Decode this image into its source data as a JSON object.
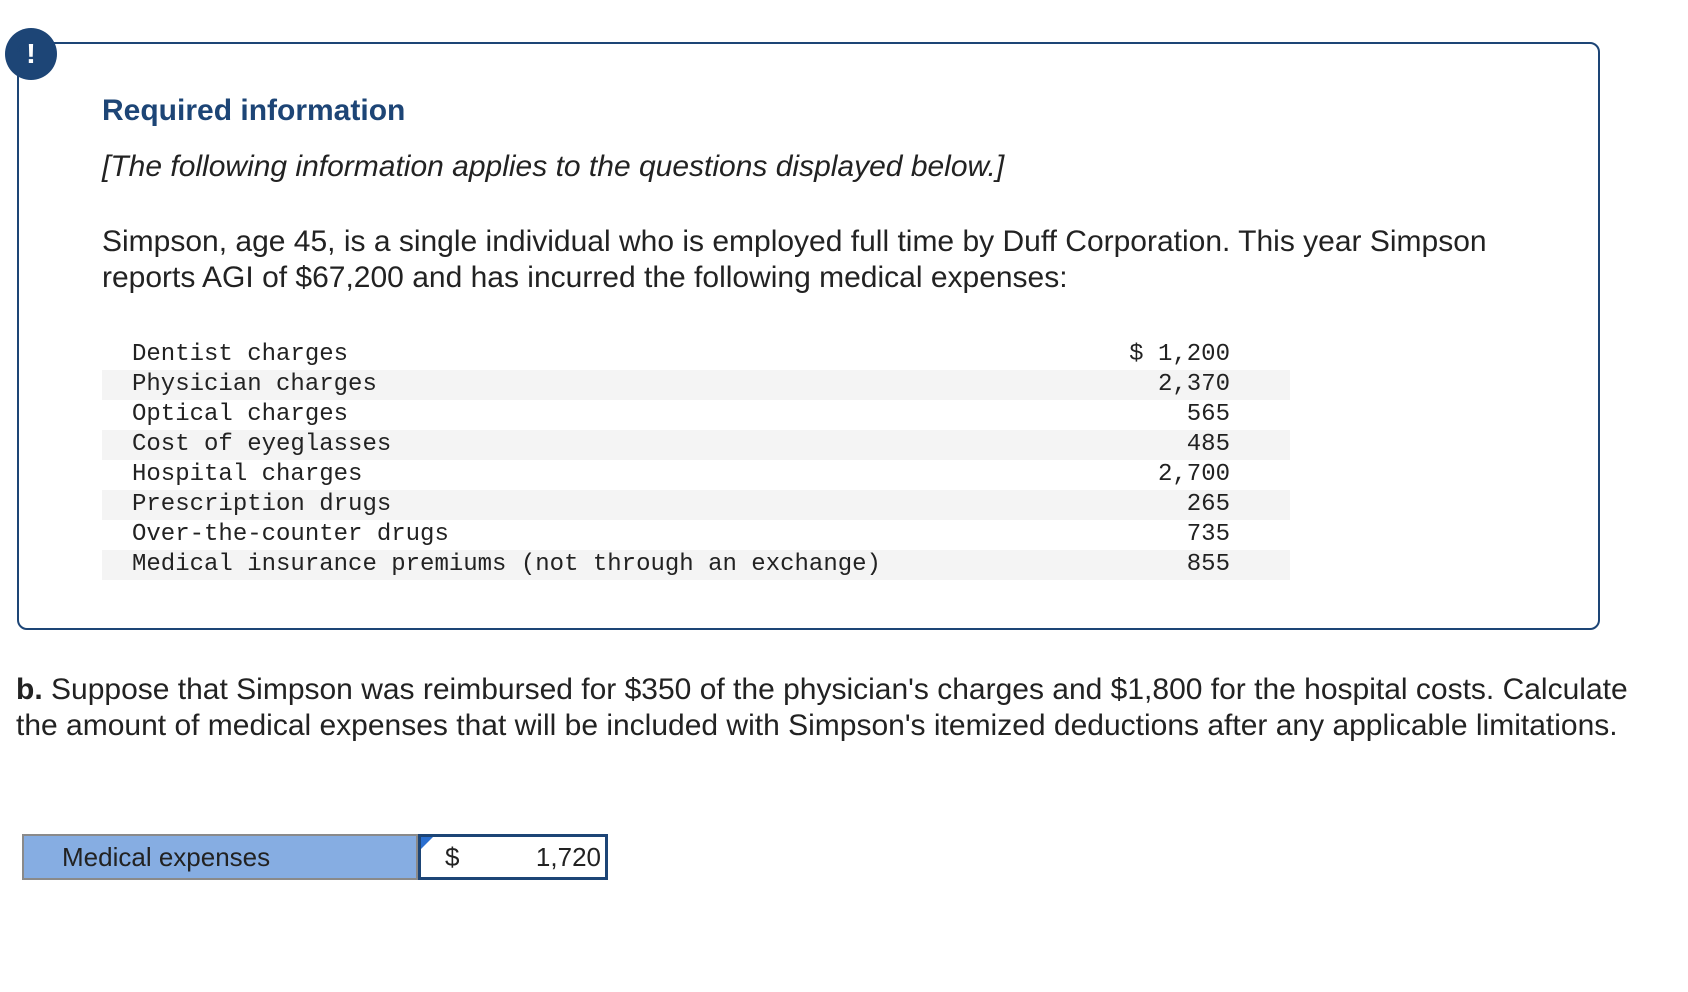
{
  "alert": {
    "icon": "exclamation-icon",
    "symbol": "!",
    "color": "#1d4576"
  },
  "info": {
    "heading": "Required information",
    "note": "[The following information applies to the questions displayed below.]",
    "paragraph": "Simpson, age 45, is a single individual who is employed full time by Duff Corporation. This year Simpson reports AGI of $67,200 and has incurred the following medical expenses:"
  },
  "expenses": [
    {
      "label": "Dentist charges",
      "amount": "$ 1,200"
    },
    {
      "label": "Physician charges",
      "amount": "2,370"
    },
    {
      "label": "Optical charges",
      "amount": "565"
    },
    {
      "label": "Cost of eyeglasses",
      "amount": "485"
    },
    {
      "label": "Hospital charges",
      "amount": "2,700"
    },
    {
      "label": "Prescription drugs",
      "amount": "265"
    },
    {
      "label": "Over-the-counter drugs",
      "amount": "735"
    },
    {
      "label": "Medical insurance premiums (not through an exchange)",
      "amount": "855"
    }
  ],
  "question": {
    "part": "b.",
    "text": " Suppose that Simpson was reimbursed for $350 of the physician's charges and $1,800 for the hospital costs. Calculate the amount of medical expenses that will be included with Simpson's itemized deductions after any applicable limitations."
  },
  "answer": {
    "label": "Medical expenses",
    "currency": "$",
    "value": "1,720"
  },
  "colors": {
    "accent": "#1d4576",
    "answer_label_bg": "#86ade2",
    "flag": "#2a6fd0"
  }
}
